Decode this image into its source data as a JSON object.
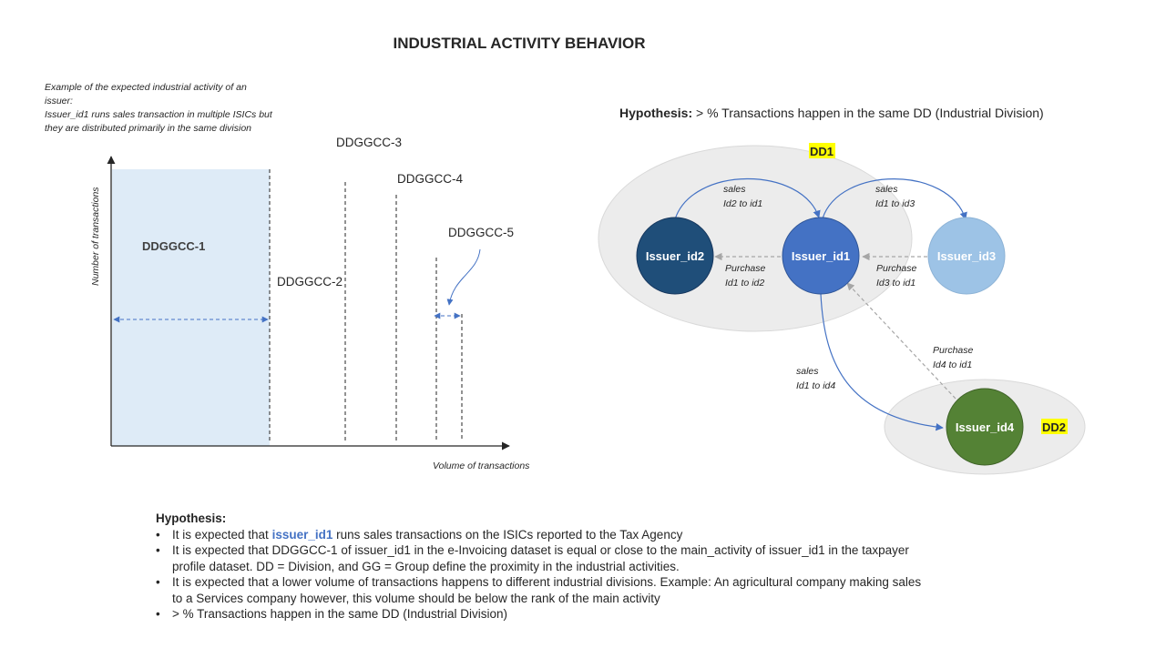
{
  "title": "INDUSTRIAL ACTIVITY BEHAVIOR",
  "example_note": [
    "Example of the expected  industrial activity  of an",
    "issuer:",
    "Issuer_id1  runs sales transaction  in multiple ISICs but",
    "they are distributed  primarily in the same division"
  ],
  "left_chart": {
    "y_axis_label": "Number  of transactions",
    "x_axis_label": "Volume of transactions",
    "labels": {
      "c1": "DDGGCC-1",
      "c2": "DDGGCC-2",
      "c3": "DDGGCC-3",
      "c4": "DDGGCC-4",
      "c5": "DDGGCC-5"
    }
  },
  "network": {
    "hypothesis_label": "Hypothesis:",
    "hypothesis_text": " > % Transactions happen in the same DD (Industrial Division)",
    "dd1_label": "DD1",
    "dd2_label": "DD2",
    "nodes": {
      "id1": "Issuer_id1",
      "id2": "Issuer_id2",
      "id3": "Issuer_id3",
      "id4": "Issuer_id4"
    },
    "edges": {
      "sales_id2_id1": [
        "sales",
        "Id2 to id1"
      ],
      "sales_id1_id3": [
        "sales",
        "Id1 to id3"
      ],
      "purchase_id1_id2": [
        "Purchase",
        "Id1 to id2"
      ],
      "purchase_id3_id1": [
        "Purchase",
        "Id3 to id1"
      ],
      "purchase_id4_id1": [
        "Purchase",
        "Id4 to id1"
      ],
      "sales_id1_id4": [
        "sales",
        "Id1 to id4"
      ]
    },
    "colors": {
      "id1": "#4472c4",
      "id2": "#1f4e79",
      "id3": "#9dc3e6",
      "id4": "#548235",
      "highlight": "#ffff00",
      "arrow_blue": "#4472c4",
      "arrow_gray": "#a6a6a6"
    }
  },
  "bottom": {
    "heading": "Hypothesis:",
    "bullet_symbol": "•",
    "b1_pre": "It is expected that ",
    "b1_accent": "issuer_id1",
    "b1_post": " runs  sales transactions on the ISICs reported  to the  Tax Agency",
    "b2_line1": "It is expected that DDGGCC-1 of issuer_id1 in the e-Invoicing dataset is equal or close to the main_activity of issuer_id1 in the taxpayer",
    "b2_line2": "profile dataset. DD = Division, and GG = Group  define the proximity in the industrial activities.",
    "b3_line1": "It is expected that a lower volume of transactions happens to different industrial divisions. Example: An agricultural company making sales",
    "b3_line2": "to a Services company however, this volume should be below the rank of the main activity",
    "b4": "> % Transactions happen in the same DD (Industrial Division)"
  }
}
